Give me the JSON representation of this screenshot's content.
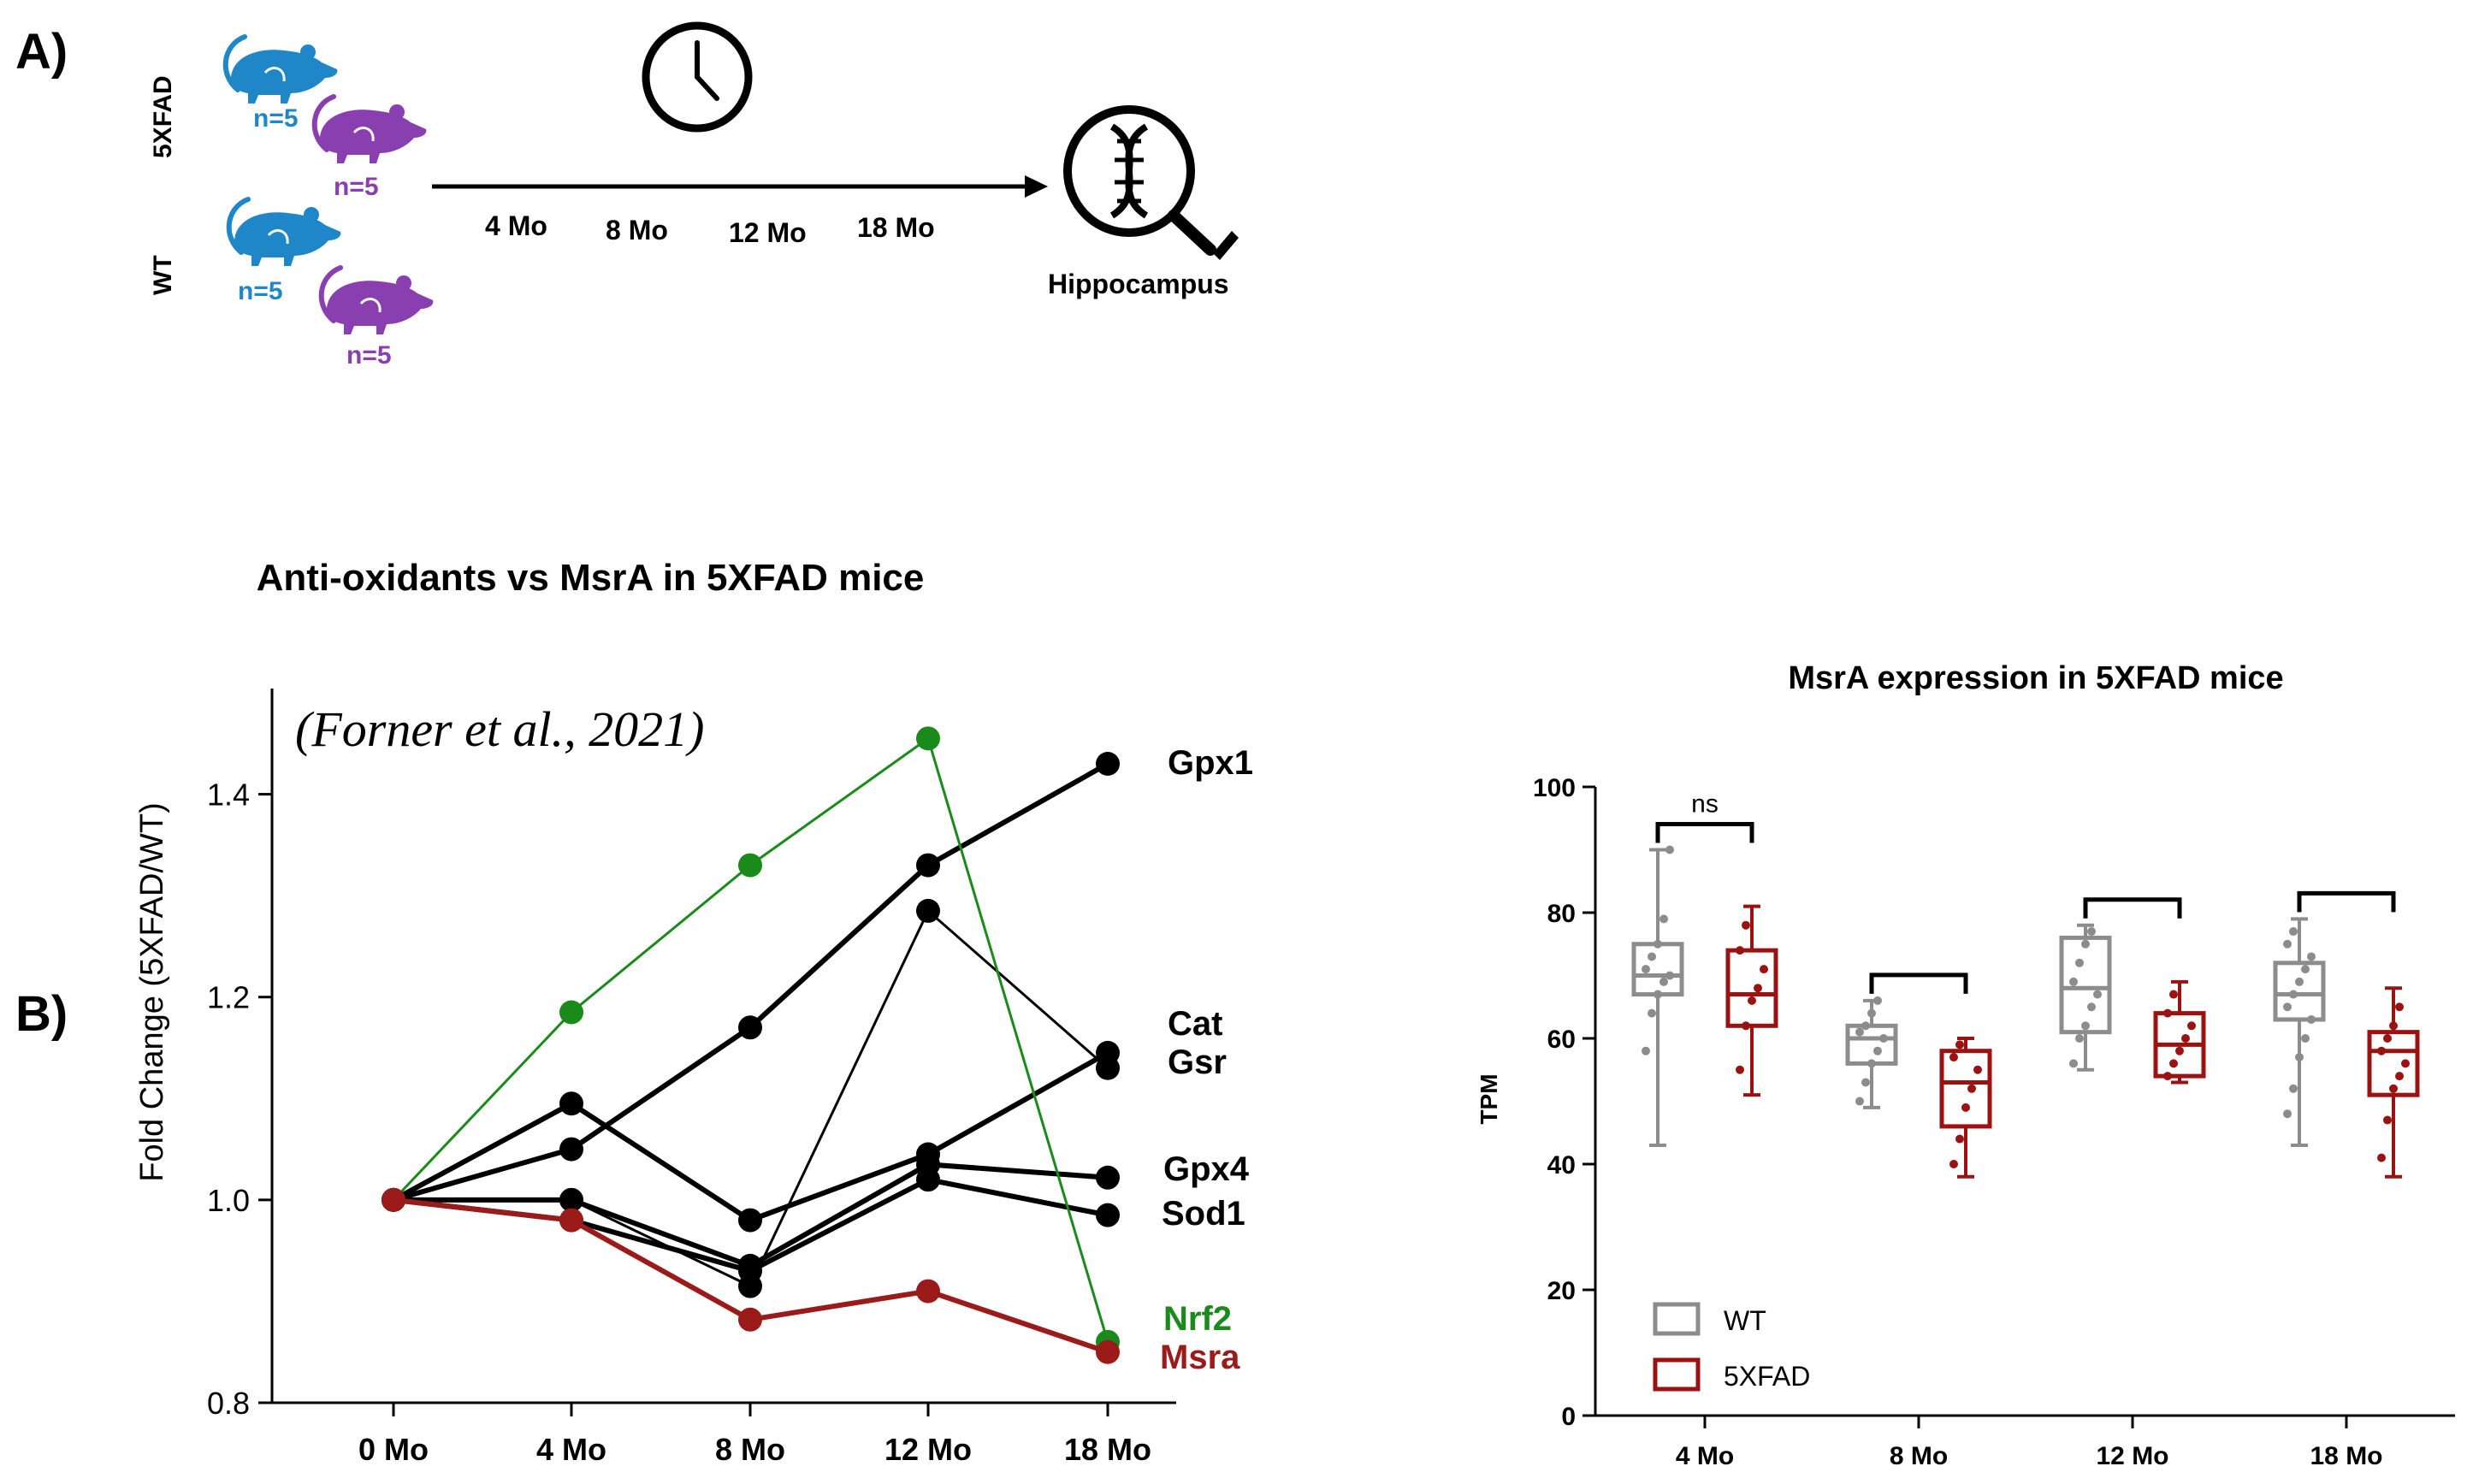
{
  "panel_a": {
    "label": "A)",
    "groups": [
      {
        "name": "5XFAD",
        "n_blue": "n=5",
        "n_purple": "n=5"
      },
      {
        "name": "WT",
        "n_blue": "n=5",
        "n_purple": "n=5"
      }
    ],
    "timepoints": [
      "4 Mo",
      "8 Mo",
      "12 Mo",
      "18 Mo"
    ],
    "endpoint": "Hippocampus",
    "colors": {
      "blue_mouse": "#1f86c8",
      "purple_mouse": "#8a3fb0"
    },
    "icons": [
      "clock-icon",
      "dna-magnifier-icon",
      "mouse-icon"
    ]
  },
  "panel_b_label": "B)",
  "chart_data": [
    {
      "type": "line",
      "title": "Anti-oxidants vs MsrA in 5XFAD mice",
      "annotation": "(Forner et al., 2021)",
      "xlabel": "",
      "ylabel": "Fold Change (5XFAD/WT)",
      "categories": [
        "0 Mo",
        "4 Mo",
        "8 Mo",
        "12 Mo",
        "18 Mo"
      ],
      "ylim": [
        0.8,
        1.5
      ],
      "yticks": [
        0.8,
        1.0,
        1.2,
        1.4
      ],
      "ytick_labels": [
        "0.8",
        "1.0",
        "1.2",
        "1.4"
      ],
      "series": [
        {
          "name": "Gpx1",
          "color": "#000000",
          "values": [
            1.0,
            1.05,
            1.17,
            1.33,
            1.43
          ]
        },
        {
          "name": "Cat",
          "color": "#000000",
          "values": [
            1.0,
            1.095,
            0.98,
            1.045,
            1.145
          ]
        },
        {
          "name": "Gsr",
          "color": "#000000",
          "values": [
            1.0,
            1.0,
            0.915,
            1.285,
            1.13
          ]
        },
        {
          "name": "Gpx4",
          "color": "#000000",
          "values": [
            1.0,
            1.0,
            0.935,
            1.035,
            1.022
          ]
        },
        {
          "name": "Sod1",
          "color": "#000000",
          "values": [
            1.0,
            0.98,
            0.93,
            1.02,
            0.985
          ]
        },
        {
          "name": "Nrf2",
          "color": "#1a8a1a",
          "values": [
            1.0,
            1.185,
            1.33,
            1.455,
            0.86
          ]
        },
        {
          "name": "Msra",
          "color": "#9b1a1a",
          "values": [
            1.0,
            0.98,
            0.882,
            0.91,
            0.85
          ]
        }
      ]
    },
    {
      "type": "box",
      "title": "MsrA expression in 5XFAD mice",
      "xlabel": "",
      "ylabel": "TPM",
      "categories": [
        "4 Mo",
        "8 Mo",
        "12 Mo",
        "18 Mo"
      ],
      "ylim": [
        0,
        100
      ],
      "yticks": [
        0,
        20,
        40,
        60,
        80,
        100
      ],
      "ytick_labels": [
        "0",
        "20",
        "40",
        "60",
        "80",
        "100"
      ],
      "significance": [
        "ns",
        "",
        "",
        ""
      ],
      "legend": [
        {
          "name": "WT",
          "color": "#8c8c8c"
        },
        {
          "name": "5XFAD",
          "color": "#9b1212"
        }
      ],
      "series": [
        {
          "name": "WT",
          "color": "#8c8c8c",
          "boxes": [
            {
              "min": 43,
              "q1": 67,
              "median": 70,
              "q3": 75,
              "max": 90,
              "points": [
                58,
                64,
                67,
                69,
                70,
                71,
                73,
                75,
                79,
                90
              ]
            },
            {
              "min": 49,
              "q1": 56,
              "median": 60,
              "q3": 62,
              "max": 66,
              "points": [
                50,
                53,
                56,
                58,
                60,
                61,
                62,
                64,
                66
              ]
            },
            {
              "min": 55,
              "q1": 61,
              "median": 68,
              "q3": 76,
              "max": 78,
              "points": [
                56,
                60,
                62,
                65,
                67,
                69,
                72,
                75,
                77
              ]
            },
            {
              "min": 43,
              "q1": 63,
              "median": 67,
              "q3": 72,
              "max": 79,
              "points": [
                48,
                52,
                57,
                60,
                63,
                65,
                67,
                69,
                71,
                73,
                75,
                77
              ]
            }
          ]
        },
        {
          "name": "5XFAD",
          "color": "#9b1212",
          "boxes": [
            {
              "min": 51,
              "q1": 62,
              "median": 67,
              "q3": 74,
              "max": 81,
              "points": [
                55,
                62,
                66,
                68,
                71,
                74,
                78
              ]
            },
            {
              "min": 38,
              "q1": 46,
              "median": 53,
              "q3": 58,
              "max": 60,
              "points": [
                40,
                44,
                49,
                52,
                55,
                57,
                59
              ]
            },
            {
              "min": 53,
              "q1": 54,
              "median": 59,
              "q3": 64,
              "max": 69,
              "points": [
                54,
                56,
                58,
                60,
                62,
                64,
                67
              ]
            },
            {
              "min": 38,
              "q1": 51,
              "median": 58,
              "q3": 61,
              "max": 68,
              "points": [
                41,
                47,
                52,
                54,
                56,
                58,
                60,
                62,
                65
              ]
            }
          ]
        }
      ]
    }
  ]
}
